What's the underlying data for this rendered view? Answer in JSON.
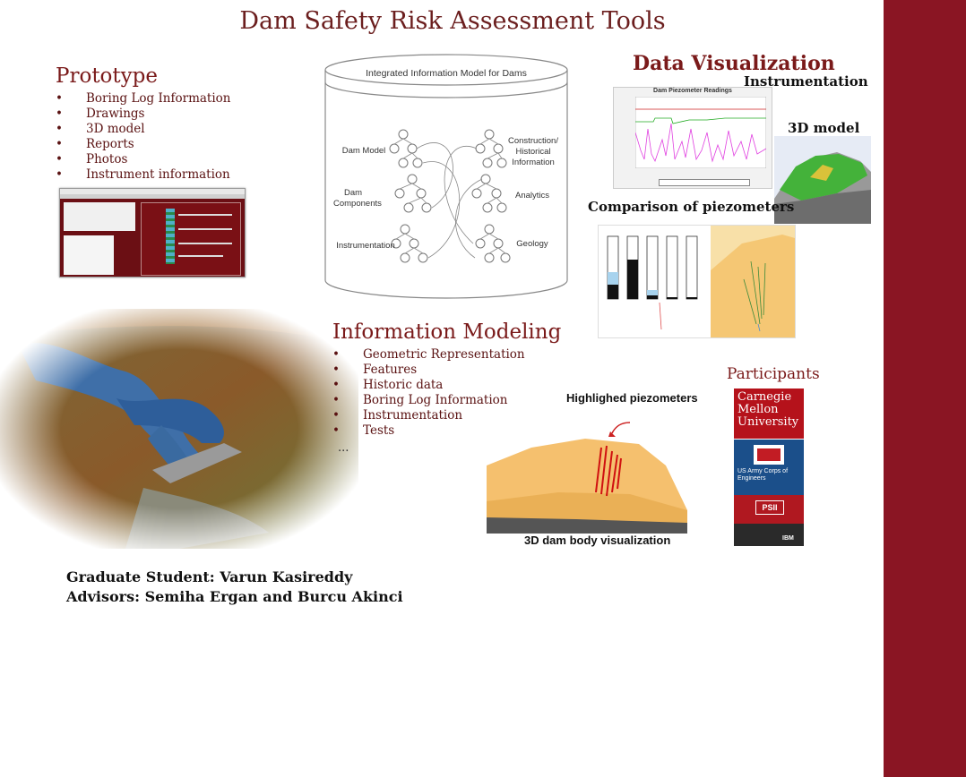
{
  "title": "Dam Safety Risk Assessment Tools",
  "prototype": {
    "heading": "Prototype",
    "items": [
      "Boring Log Information",
      "Drawings",
      "3D model",
      "Reports",
      "Photos",
      "Instrument information"
    ]
  },
  "model": {
    "title": "Integrated Information Model for Dams",
    "left_labels": [
      "Dam Model",
      "Dam Components",
      "Instrumentation"
    ],
    "right_labels": [
      "Construction/ Historical Information",
      "Analytics",
      "Geology"
    ]
  },
  "visualization": {
    "heading": "Data Visualization",
    "instrumentation_label": "Instrumentation",
    "chart_title": "Dam Piezometer Readings",
    "model3d_label": "3D model",
    "comparison_label": "Comparison of piezometers"
  },
  "info_modeling": {
    "heading": "Information Modeling",
    "items": [
      "Geometric Representation",
      "Features",
      "Historic data",
      "Boring Log Information",
      "Instrumentation",
      "Tests"
    ],
    "ellipsis": "..."
  },
  "highlight": {
    "top_label": "Highlighed piezometers",
    "bottom_label": "3D dam body visualization"
  },
  "participants": {
    "heading": "Participants",
    "cmu": "Carnegie Mellon University",
    "usace": "US Army Corps of Engineers",
    "ibm": "IBM"
  },
  "credits": {
    "student": "Graduate Student: Varun Kasireddy",
    "advisors": "Advisors: Semiha Ergan and Burcu Akinci"
  },
  "colors": {
    "brand": "#8a1523",
    "heading": "#7a1a1a"
  }
}
